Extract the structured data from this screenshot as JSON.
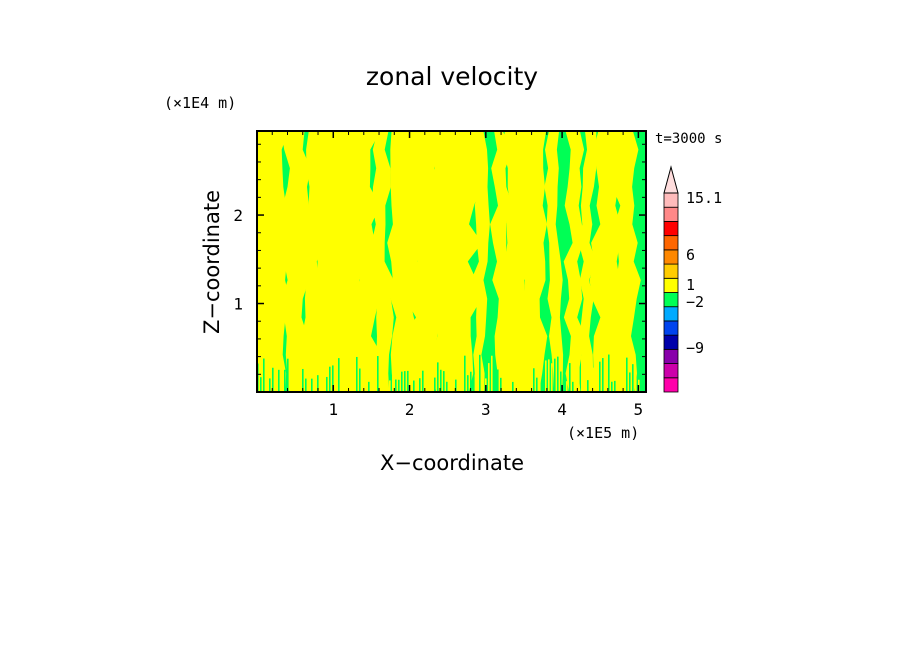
{
  "chart_data": {
    "type": "heatmap",
    "title": "zonal velocity",
    "xlabel": "X−coordinate",
    "ylabel": "Z−coordinate",
    "x_unit": "(×1E5 m)",
    "y_unit": "(×1E4 m)",
    "time_label": "t=3000 s",
    "xlim": [
      0,
      5.1
    ],
    "ylim": [
      0,
      2.95
    ],
    "x_ticks": [
      1,
      2,
      3,
      4,
      5
    ],
    "y_ticks": [
      1,
      2
    ],
    "x_tick_labels": [
      "1",
      "2",
      "3",
      "4",
      "5"
    ],
    "y_tick_labels": [
      "1",
      "2"
    ],
    "field_colors": {
      "positive": "#ffff00",
      "negative": "#00ff55"
    },
    "colorbar": {
      "labels": [
        {
          "value": 15.1,
          "text": "15.1"
        },
        {
          "value": 6,
          "text": "6"
        },
        {
          "value": 1,
          "text": "1"
        },
        {
          "value": -2,
          "text": "−2"
        },
        {
          "value": -9,
          "text": "−9"
        }
      ],
      "bands": [
        {
          "color": "#ff00aa"
        },
        {
          "color": "#cc00aa"
        },
        {
          "color": "#8800aa"
        },
        {
          "color": "#0000aa"
        },
        {
          "color": "#0044ee"
        },
        {
          "color": "#00aaff"
        },
        {
          "color": "#00ff55"
        },
        {
          "color": "#ffff00"
        },
        {
          "color": "#ffcc00"
        },
        {
          "color": "#ff8800"
        },
        {
          "color": "#ff6600"
        },
        {
          "color": "#ff0000"
        },
        {
          "color": "#ff8888"
        },
        {
          "color": "#ffbbbb"
        }
      ],
      "overflow_color": "#ffdddd"
    }
  }
}
